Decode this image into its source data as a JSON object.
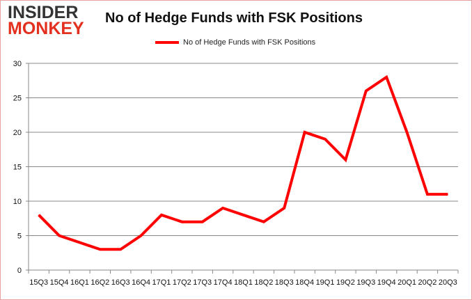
{
  "logo": {
    "line1": "INSIDER",
    "line2": "MONKEY"
  },
  "chart_data": {
    "type": "line",
    "title": "No of Hedge Funds with FSK Positions",
    "xlabel": "",
    "ylabel": "",
    "categories": [
      "15Q3",
      "15Q4",
      "16Q1",
      "16Q2",
      "16Q3",
      "16Q4",
      "17Q1",
      "17Q2",
      "17Q3",
      "17Q4",
      "18Q1",
      "18Q2",
      "18Q3",
      "18Q4",
      "19Q1",
      "19Q2",
      "19Q3",
      "19Q4",
      "20Q1",
      "20Q2",
      "20Q3"
    ],
    "series": [
      {
        "name": "No of Hedge Funds with FSK Positions",
        "color": "#ff0000",
        "values": [
          8,
          5,
          4,
          3,
          3,
          5,
          8,
          7,
          7,
          9,
          8,
          7,
          9,
          20,
          19,
          16,
          26,
          28,
          20,
          11,
          11
        ]
      }
    ],
    "ylim": [
      0,
      30
    ],
    "yticks": [
      0,
      5,
      10,
      15,
      20,
      25,
      30
    ],
    "grid": true,
    "legend": "top"
  }
}
